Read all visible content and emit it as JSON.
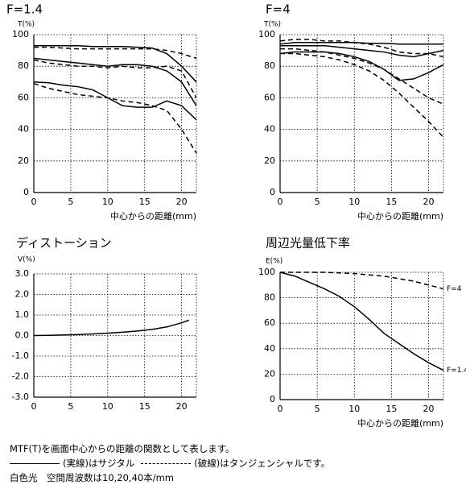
{
  "chart_data": [
    {
      "type": "line",
      "title": "F=1.4",
      "y_label": "T(%)",
      "x_label": "中心からの距離(mm)",
      "x": [
        0,
        2,
        4,
        6,
        8,
        10,
        12,
        14,
        16,
        18,
        20,
        22
      ],
      "series": [
        {
          "color": "#000",
          "style": "solid",
          "values": [
            93,
            93,
            93,
            93,
            92.5,
            92.5,
            92.5,
            92,
            91.5,
            88,
            80,
            70
          ]
        },
        {
          "color": "#000",
          "style": "dashed",
          "values": [
            92,
            92,
            91.5,
            91,
            91,
            91,
            91,
            91,
            91,
            90,
            88,
            85
          ]
        },
        {
          "color": "#000",
          "style": "solid",
          "values": [
            85,
            84,
            83,
            82,
            81,
            80,
            81,
            81,
            80,
            77,
            70,
            55
          ]
        },
        {
          "color": "#000",
          "style": "dashed",
          "values": [
            84,
            82,
            81,
            80,
            80,
            79,
            80,
            79,
            79,
            80,
            77,
            60
          ]
        },
        {
          "color": "#000",
          "style": "solid",
          "values": [
            70,
            69.5,
            68,
            67,
            65,
            60,
            55,
            54,
            54,
            58,
            55,
            46
          ]
        },
        {
          "color": "#000",
          "style": "dashed",
          "values": [
            69,
            66,
            64,
            62,
            61,
            60,
            58,
            57,
            55,
            52,
            40,
            25
          ]
        }
      ],
      "xlim": [
        0,
        22
      ],
      "ylim": [
        0,
        100
      ],
      "xticks": [
        0,
        5,
        10,
        15,
        20
      ],
      "yticks": [
        0,
        20,
        40,
        60,
        80,
        100
      ],
      "grid": true
    },
    {
      "type": "line",
      "title": "F=4",
      "y_label": "T(%)",
      "x_label": "中心からの距離(mm)",
      "x": [
        0,
        2,
        4,
        6,
        8,
        10,
        12,
        14,
        16,
        18,
        20,
        22
      ],
      "series": [
        {
          "color": "#000",
          "style": "solid",
          "values": [
            94,
            95,
            95,
            95,
            95,
            95,
            94.5,
            94.5,
            94,
            94,
            94,
            94
          ]
        },
        {
          "color": "#000",
          "style": "dashed",
          "values": [
            96,
            97,
            97,
            96,
            96,
            95,
            94,
            92,
            89,
            88,
            88,
            86
          ]
        },
        {
          "color": "#000",
          "style": "solid",
          "values": [
            93,
            93,
            93,
            93,
            92,
            91,
            90,
            89,
            87,
            86,
            88,
            90
          ]
        },
        {
          "color": "#000",
          "style": "dashed",
          "values": [
            91,
            91,
            90,
            89,
            87,
            85,
            82,
            78,
            72,
            66,
            60,
            56
          ]
        },
        {
          "color": "#000",
          "style": "solid",
          "values": [
            88,
            89,
            89,
            89,
            88,
            86,
            83,
            78,
            71,
            72,
            76,
            81
          ]
        },
        {
          "color": "#000",
          "style": "dashed",
          "values": [
            88,
            88,
            87,
            86,
            84,
            81,
            77,
            71,
            63,
            54,
            45,
            35
          ]
        }
      ],
      "xlim": [
        0,
        22
      ],
      "ylim": [
        0,
        100
      ],
      "xticks": [
        0,
        5,
        10,
        15,
        20
      ],
      "yticks": [
        0,
        20,
        40,
        60,
        80,
        100
      ],
      "grid": true
    },
    {
      "type": "line",
      "title": "ディストーション",
      "y_label": "V(%)",
      "x": [
        0,
        2,
        4,
        6,
        8,
        10,
        12,
        14,
        16,
        18,
        20,
        21
      ],
      "series": [
        {
          "color": "#000",
          "style": "solid",
          "values": [
            0,
            0.01,
            0.03,
            0.05,
            0.08,
            0.12,
            0.16,
            0.22,
            0.3,
            0.42,
            0.62,
            0.75
          ]
        }
      ],
      "xlim": [
        0,
        22
      ],
      "ylim": [
        -3,
        3
      ],
      "xticks": [
        0,
        5,
        10,
        15,
        20
      ],
      "yticks": [
        {
          "value": -3,
          "label": "-3.0"
        },
        {
          "value": -2,
          "label": "-2.0"
        },
        {
          "value": -1,
          "label": "-1.0"
        },
        {
          "value": 0,
          "label": "0.0"
        },
        {
          "value": 1,
          "label": "1.0"
        },
        {
          "value": 2,
          "label": "2.0"
        },
        {
          "value": 3,
          "label": "3.0"
        }
      ],
      "grid": true
    },
    {
      "type": "line",
      "title": "周辺光量低下率",
      "y_label": "E(%)",
      "x_label": "中心からの距離(mm)",
      "x": [
        0,
        2,
        4,
        6,
        8,
        10,
        12,
        14,
        16,
        18,
        20,
        22
      ],
      "series": [
        {
          "name": "F=4",
          "color": "#000",
          "style": "dashed",
          "values": [
            100,
            100,
            100,
            100,
            99.5,
            99,
            98,
            97,
            95,
            93,
            90,
            87
          ]
        },
        {
          "name": "F=1.4",
          "color": "#000",
          "style": "solid",
          "values": [
            100,
            97,
            92,
            87,
            81,
            73,
            63,
            52,
            44,
            36,
            29,
            23
          ]
        }
      ],
      "xlim": [
        0,
        22
      ],
      "ylim": [
        0,
        100
      ],
      "xticks": [
        0,
        5,
        10,
        15,
        20
      ],
      "yticks": [
        0,
        20,
        40,
        60,
        80,
        100
      ],
      "grid": true
    }
  ],
  "footer": {
    "line1": "MTF(T)を画面中心からの距離の関数として表します。",
    "solid_text": "(実線)はサジタル",
    "dashed_text": "(破線)はタンジェンシャルです。",
    "line3": "白色光　空間周波数は10,20,40本/mm"
  }
}
